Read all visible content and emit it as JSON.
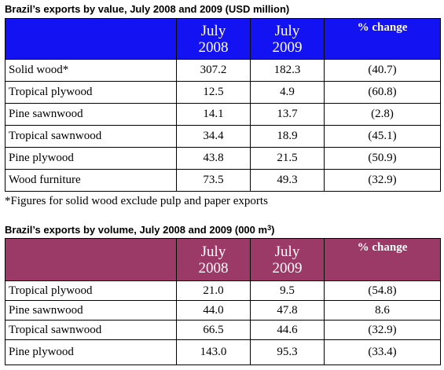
{
  "table1": {
    "title": "Brazil’s exports by value, July 2008 and 2009 (USD million)",
    "header": {
      "col1_line1": "July",
      "col1_line2": "2008",
      "col2_line1": "July",
      "col2_line2": "2009",
      "col3": "% change"
    },
    "rows": [
      {
        "label": "Solid wood*",
        "v2008": "307.2",
        "v2009": "182.3",
        "change": "(40.7)"
      },
      {
        "label": "Tropical plywood",
        "v2008": "12.5",
        "v2009": "4.9",
        "change": "(60.8)"
      },
      {
        "label": "Pine sawnwood",
        "v2008": "14.1",
        "v2009": "13.7",
        "change": "(2.8)"
      },
      {
        "label": "Tropical sawnwood",
        "v2008": "34.4",
        "v2009": "18.9",
        "change": "(45.1)"
      },
      {
        "label": "Pine plywood",
        "v2008": "43.8",
        "v2009": "21.5",
        "change": "(50.9)"
      },
      {
        "label": "Wood furniture",
        "v2008": "73.5",
        "v2009": "49.3",
        "change": "(32.9)"
      }
    ],
    "header_color": "#1212f2"
  },
  "footnote": "*Figures for solid wood exclude pulp and paper exports",
  "table2": {
    "title": "Brazil’s exports by volume, July 2008 and 2009 (000 m",
    "title_sup": "3",
    "title_end": ")",
    "header": {
      "col1_line1": "July",
      "col1_line2": "2008",
      "col2_line1": "July",
      "col2_line2": "2009",
      "col3": "% change"
    },
    "rows": [
      {
        "label": "Tropical plywood",
        "v2008": "21.0",
        "v2009": "9.5",
        "change": "(54.8)"
      },
      {
        "label": "Pine sawnwood",
        "v2008": "44.0",
        "v2009": "47.8",
        "change": "8.6"
      },
      {
        "label": "Tropical sawnwood",
        "v2008": "66.5",
        "v2009": "44.6",
        "change": "(32.9)"
      },
      {
        "label": "Pine plywood",
        "v2008": "143.0",
        "v2009": "95.3",
        "change": "(33.4)"
      }
    ],
    "header_color": "#9b3a67"
  }
}
